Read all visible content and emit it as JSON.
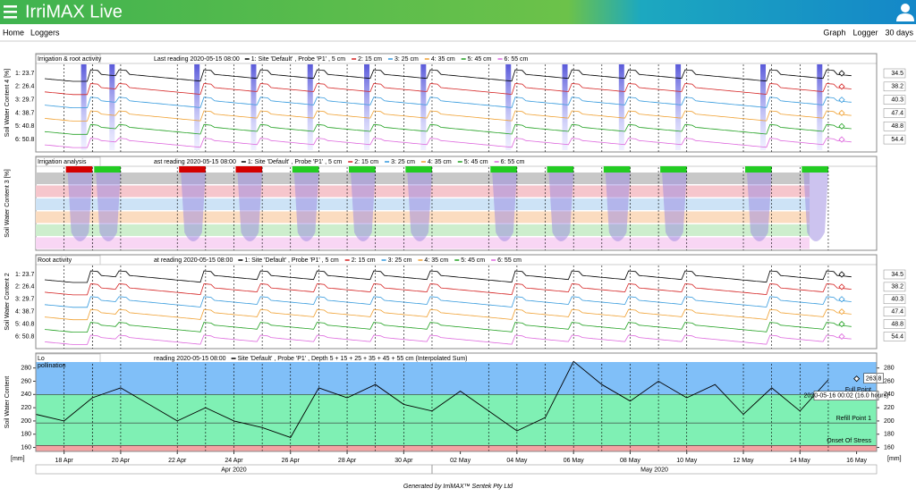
{
  "header": {
    "title": "IrriMAX Live"
  },
  "nav": {
    "left": [
      "Home",
      "Loggers"
    ],
    "right": [
      "Graph",
      "Logger",
      "30 days"
    ]
  },
  "sensors": {
    "labels": [
      "1: Site 'Default' , Probe 'P1' , 5 cm",
      "2: 15 cm",
      "3: 25 cm",
      "4: 35 cm",
      "5: 45 cm",
      "6: 55 cm"
    ],
    "colors": [
      "#000000",
      "#d42020",
      "#3399dd",
      "#f0a030",
      "#20a020",
      "#dd66dd"
    ]
  },
  "panels": [
    {
      "title": "Irrigation & root activity",
      "y_label": "Soil Water Content 4 [%]",
      "legend_prefix": "Last reading 2020-05-15 08:00",
      "left_values": [
        "1: 23.7",
        "2: 26.4",
        "3: 29.7",
        "4: 38.7",
        "5: 40.8",
        "6: 50.8"
      ],
      "right_values": [
        "34.5",
        "38.2",
        "40.3",
        "47.4",
        "48.8",
        "54.4"
      ]
    },
    {
      "title": "Irrigation analysis",
      "y_label": "Soil Water Content 3 [%]",
      "legend_prefix": "ast reading 2020-05-15 08:00"
    },
    {
      "title": "Root activity",
      "y_label": "Soil Water Content 2",
      "legend_prefix": "at reading 2020-05-15 08:00",
      "left_values": [
        "1: 23.7",
        "2: 26.4",
        "3: 29.7",
        "4: 38.7",
        "5: 40.8",
        "6: 50.8"
      ],
      "right_values": [
        "34.5",
        "38.2",
        "40.3",
        "47.4",
        "48.8",
        "54.4"
      ]
    }
  ],
  "irrigation_events": [
    {
      "date": "2020-04-18",
      "color": "#d40000"
    },
    {
      "date": "2020-04-19",
      "color": "#22cc22"
    },
    {
      "date": "2020-04-22",
      "color": "#d40000"
    },
    {
      "date": "2020-04-24",
      "color": "#d40000"
    },
    {
      "date": "2020-04-26",
      "color": "#22cc22"
    },
    {
      "date": "2020-04-28",
      "color": "#22cc22"
    },
    {
      "date": "2020-04-30",
      "color": "#22cc22"
    },
    {
      "date": "2020-05-03",
      "color": "#22cc22"
    },
    {
      "date": "2020-05-05",
      "color": "#22cc22"
    },
    {
      "date": "2020-05-07",
      "color": "#22cc22"
    },
    {
      "date": "2020-05-09",
      "color": "#22cc22"
    },
    {
      "date": "2020-05-12",
      "color": "#22cc22"
    },
    {
      "date": "2020-05-14",
      "color": "#22cc22"
    }
  ],
  "chart_data": {
    "type": "line",
    "title": "Lo",
    "y_label": "Soil Water Content",
    "y_unit": "[mm]",
    "legend_prefix": "reading 2020-05-15 08:00",
    "x": [
      "2020-04-17",
      "2020-04-18",
      "2020-04-19",
      "2020-04-20",
      "2020-04-21",
      "2020-04-22",
      "2020-04-23",
      "2020-04-24",
      "2020-04-25",
      "2020-04-26",
      "2020-04-27",
      "2020-04-28",
      "2020-04-29",
      "2020-04-30",
      "2020-05-01",
      "2020-05-02",
      "2020-05-03",
      "2020-05-04",
      "2020-05-05",
      "2020-05-06",
      "2020-05-07",
      "2020-05-08",
      "2020-05-09",
      "2020-05-10",
      "2020-05-11",
      "2020-05-12",
      "2020-05-13",
      "2020-05-14",
      "2020-05-15"
    ],
    "series": [
      {
        "name": "Site 'Default' , Probe 'P1' , Depth 5 + 15 + 25 + 35 + 45 + 55 cm (Interpolated Sum)",
        "color": "#000000",
        "values": [
          210,
          200,
          235,
          250,
          225,
          200,
          220,
          200,
          190,
          175,
          250,
          235,
          255,
          225,
          215,
          245,
          215,
          185,
          205,
          290,
          255,
          230,
          260,
          235,
          255,
          210,
          250,
          215,
          262
        ]
      }
    ],
    "xlim": [
      "2020-04-17",
      "2020-05-16 17:00"
    ],
    "xticks": [
      {
        "value": "2020-04-18",
        "label": "18 Apr"
      },
      {
        "value": "2020-04-20",
        "label": "20 Apr"
      },
      {
        "value": "2020-04-22",
        "label": "22 Apr"
      },
      {
        "value": "2020-04-24",
        "label": "24 Apr"
      },
      {
        "value": "2020-04-26",
        "label": "26 Apr"
      },
      {
        "value": "2020-04-28",
        "label": "28 Apr"
      },
      {
        "value": "2020-04-30",
        "label": "30 Apr"
      },
      {
        "value": "2020-05-02",
        "label": "02 May"
      },
      {
        "value": "2020-05-04",
        "label": "04 May"
      },
      {
        "value": "2020-05-06",
        "label": "06 May"
      },
      {
        "value": "2020-05-08",
        "label": "08 May"
      },
      {
        "value": "2020-05-10",
        "label": "10 May"
      },
      {
        "value": "2020-05-12",
        "label": "12 May"
      },
      {
        "value": "2020-05-14",
        "label": "14 May"
      },
      {
        "value": "2020-05-16",
        "label": "16 May"
      }
    ],
    "months": [
      {
        "value": "2020-04-17",
        "label": "Apr 2020"
      },
      {
        "value": "2020-05-01",
        "label": "May 2020"
      }
    ],
    "ylim": [
      154,
      289
    ],
    "yticks": [
      160,
      180,
      200,
      220,
      240,
      260,
      280
    ],
    "zones": [
      {
        "label": "Full Point",
        "value": 240,
        "color": "#80bff8"
      },
      {
        "label": "Refill Point 1",
        "value": 197,
        "color": "#7ff0b4"
      },
      {
        "label": "Onset Of Stress",
        "value": 163,
        "color": "#80f0b0"
      }
    ],
    "stress_color": "#f4a3a3",
    "annotation": "pollination",
    "marker": {
      "x": "2020-05-16 00:02",
      "value": 263.8,
      "tooltip": "2020-05-16 00:02 (16.0 hours)"
    }
  },
  "footer": "Generated by IrriMAX™ Sentek Pty Ltd"
}
